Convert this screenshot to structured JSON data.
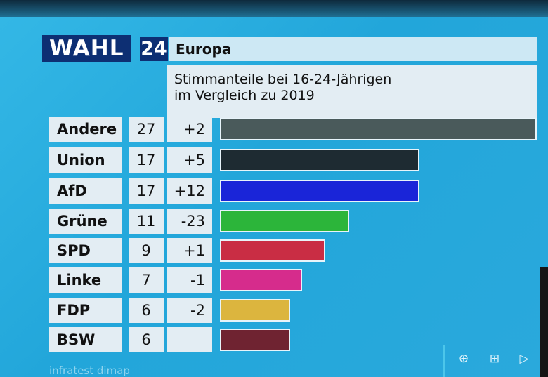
{
  "logo": {
    "brand": "WAHL",
    "number": "24",
    "region": "Europa"
  },
  "subtitle": [
    "Stimmanteile bei 16-24-Jährigen",
    "im Vergleich zu 2019"
  ],
  "source": "infratest dimap",
  "controls": [
    {
      "icon": "plus-circle-icon",
      "glyph": "⊕"
    },
    {
      "icon": "plus-square-icon",
      "glyph": "⊞"
    },
    {
      "icon": "play-icon",
      "glyph": "▷"
    }
  ],
  "chart_data": {
    "type": "bar",
    "orientation": "horizontal",
    "title": "Stimmanteile bei 16-24-Jährigen im Vergleich zu 2019",
    "categories": [
      "Andere",
      "Union",
      "AfD",
      "Grüne",
      "SPD",
      "Linke",
      "FDP",
      "BSW"
    ],
    "values": [
      27,
      17,
      17,
      11,
      9,
      7,
      6,
      6
    ],
    "changes": [
      "+2",
      "+5",
      "+12",
      "-23",
      "+1",
      "-1",
      "-2",
      ""
    ],
    "colors": [
      "#4a5a5b",
      "#1e2b32",
      "#1a25d8",
      "#2cb53a",
      "#c92d44",
      "#d62c8c",
      "#dcb53e",
      "#6f2331"
    ],
    "xlim": [
      0,
      27
    ],
    "grid": false,
    "legend": "none"
  }
}
